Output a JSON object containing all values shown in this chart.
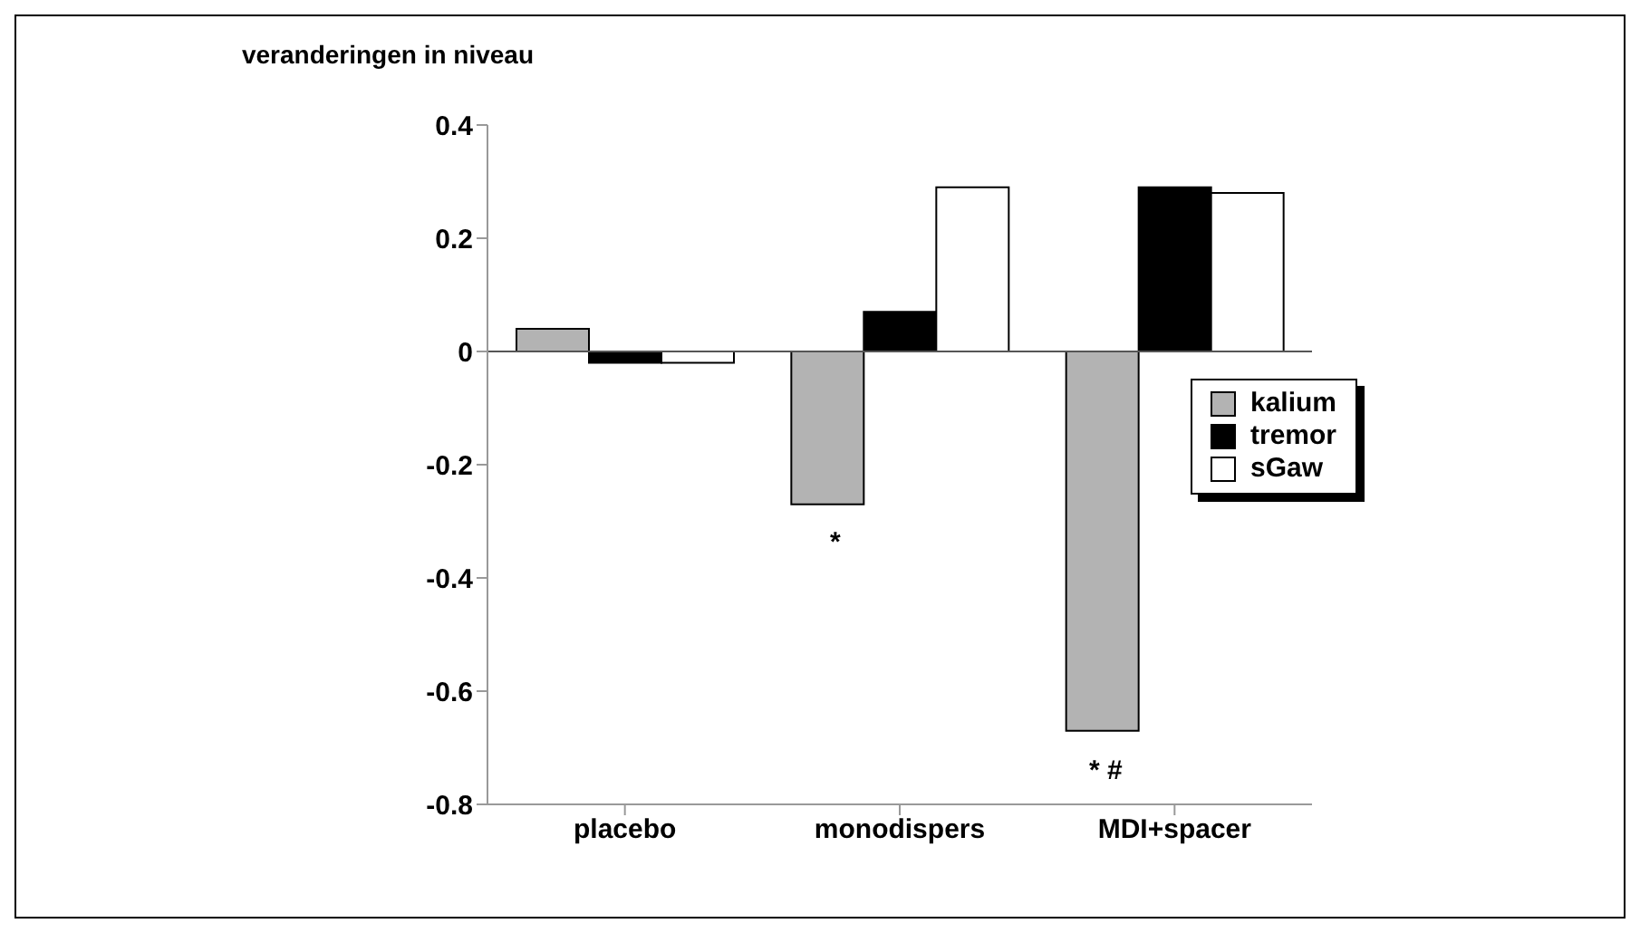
{
  "chart_data": {
    "type": "bar",
    "ylabel": "veranderingen in niveau",
    "categories": [
      "placebo",
      "monodispers",
      "MDI+spacer"
    ],
    "series": [
      {
        "name": "kalium",
        "color": "#b3b3b3",
        "values": [
          0.04,
          -0.27,
          -0.67
        ]
      },
      {
        "name": "tremor",
        "color": "#000000",
        "values": [
          -0.02,
          0.07,
          0.29
        ]
      },
      {
        "name": "sGaw",
        "color": "#ffffff",
        "values": [
          -0.02,
          0.29,
          0.28
        ]
      }
    ],
    "ylim": [
      -0.8,
      0.4
    ],
    "yticks": [
      -0.8,
      -0.6,
      -0.4,
      -0.2,
      0,
      0.2,
      0.4
    ],
    "grid": false,
    "legend": "right",
    "ref_lines": [
      {
        "axis": "y",
        "value": 0
      }
    ],
    "annotations": [
      "*",
      "* #"
    ]
  }
}
